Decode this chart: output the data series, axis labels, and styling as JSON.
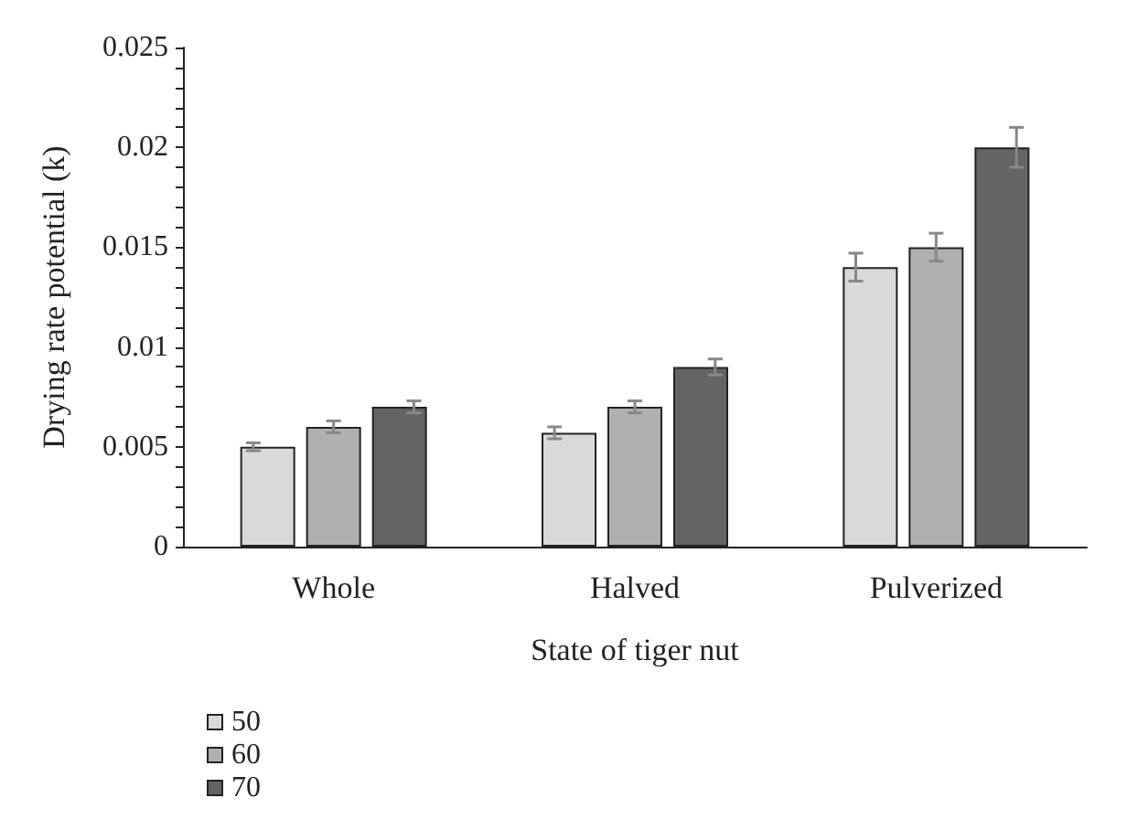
{
  "chart_data": {
    "type": "bar",
    "xlabel": "State of tiger nut",
    "ylabel": "Drying rate potential (k)",
    "categories": [
      "Whole",
      "Halved",
      "Pulverized"
    ],
    "series": [
      {
        "name": "50",
        "color": "#d9d9d9",
        "values": [
          0.005,
          0.0057,
          0.014
        ],
        "errors": [
          0.0002,
          0.0003,
          0.0007
        ]
      },
      {
        "name": "60",
        "color": "#b0b0b0",
        "values": [
          0.006,
          0.007,
          0.015
        ],
        "errors": [
          0.0003,
          0.0003,
          0.0007
        ]
      },
      {
        "name": "70",
        "color": "#646464",
        "values": [
          0.007,
          0.009,
          0.02
        ],
        "errors": [
          0.0003,
          0.0004,
          0.001
        ]
      }
    ],
    "ylim": [
      0,
      0.025
    ],
    "yticks": [
      0,
      {
        "value": 0.001,
        "label": null
      },
      {
        "value": 0.002,
        "label": null
      },
      {
        "value": 0.003,
        "label": null
      },
      {
        "value": 0.004,
        "label": null
      },
      0.005,
      {
        "value": 0.006,
        "label": null
      },
      {
        "value": 0.007,
        "label": null
      },
      {
        "value": 0.008,
        "label": null
      },
      {
        "value": 0.009,
        "label": null
      },
      0.01,
      {
        "value": 0.011,
        "label": null
      },
      {
        "value": 0.012,
        "label": null
      },
      {
        "value": 0.013,
        "label": null
      },
      {
        "value": 0.014,
        "label": null
      },
      0.015,
      {
        "value": 0.016,
        "label": null
      },
      {
        "value": 0.017,
        "label": null
      },
      {
        "value": 0.018,
        "label": null
      },
      {
        "value": 0.019,
        "label": null
      },
      0.02,
      {
        "value": 0.021,
        "label": null
      },
      {
        "value": 0.022,
        "label": null
      },
      {
        "value": 0.023,
        "label": null
      },
      {
        "value": 0.024,
        "label": null
      },
      0.025
    ],
    "grid": false,
    "legend": "bottom left"
  }
}
